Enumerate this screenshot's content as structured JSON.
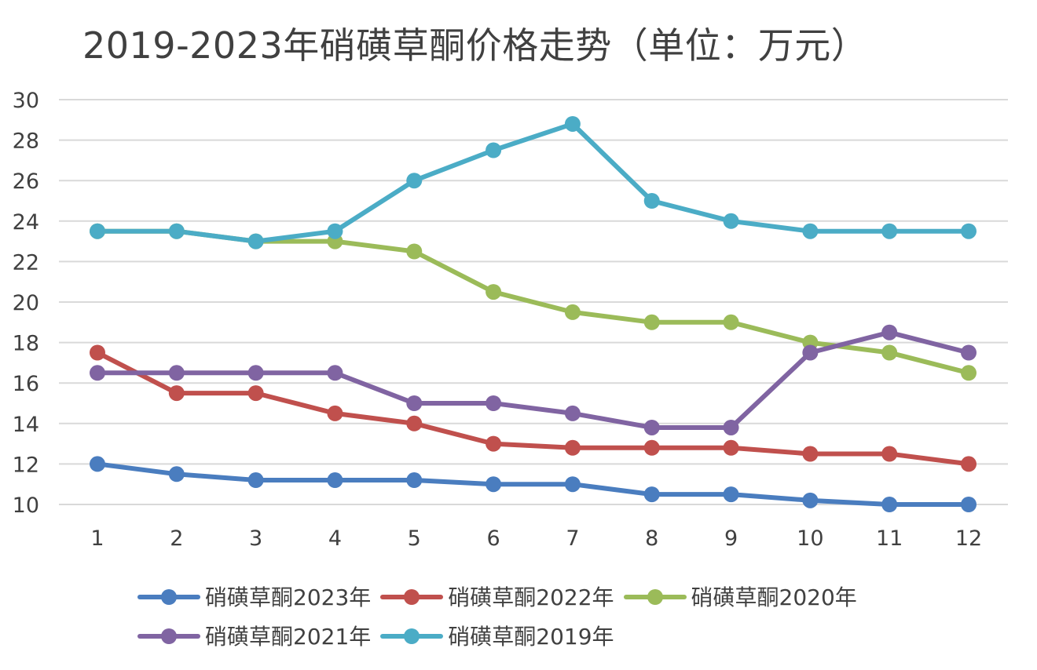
{
  "chart_data": {
    "type": "line",
    "title": "2019-2023年硝磺草酮价格走势（单位：万元）",
    "categories": [
      "1",
      "2",
      "3",
      "4",
      "5",
      "6",
      "7",
      "8",
      "9",
      "10",
      "11",
      "12"
    ],
    "ylim": [
      10,
      30
    ],
    "yticks": [
      "10",
      "12",
      "14",
      "16",
      "18",
      "20",
      "22",
      "24",
      "26",
      "28",
      "30"
    ],
    "grid": true,
    "legend_position": "bottom",
    "series": [
      {
        "name": "硝磺草酮2023年",
        "color": "#4a7dbf",
        "values": [
          12,
          11.5,
          11.2,
          11.2,
          11.2,
          11,
          11,
          10.5,
          10.5,
          10.2,
          10,
          10
        ]
      },
      {
        "name": "硝磺草酮2022年",
        "color": "#c0504d",
        "values": [
          17.5,
          15.5,
          15.5,
          14.5,
          14,
          13,
          12.8,
          12.8,
          12.8,
          12.5,
          12.5,
          12
        ]
      },
      {
        "name": "硝磺草酮2020年",
        "color": "#9bbb59",
        "values": [
          23.5,
          23.5,
          23,
          23,
          22.5,
          20.5,
          19.5,
          19,
          19,
          18,
          17.5,
          16.5
        ]
      },
      {
        "name": "硝磺草酮2021年",
        "color": "#8064a2",
        "values": [
          16.5,
          16.5,
          16.5,
          16.5,
          15,
          15,
          14.5,
          13.8,
          13.8,
          17.5,
          18.5,
          17.5
        ]
      },
      {
        "name": "硝磺草酮2019年",
        "color": "#4bacc6",
        "values": [
          23.5,
          23.5,
          23,
          23.5,
          26,
          27.5,
          28.8,
          25,
          24,
          23.5,
          23.5,
          23.5
        ]
      }
    ]
  }
}
